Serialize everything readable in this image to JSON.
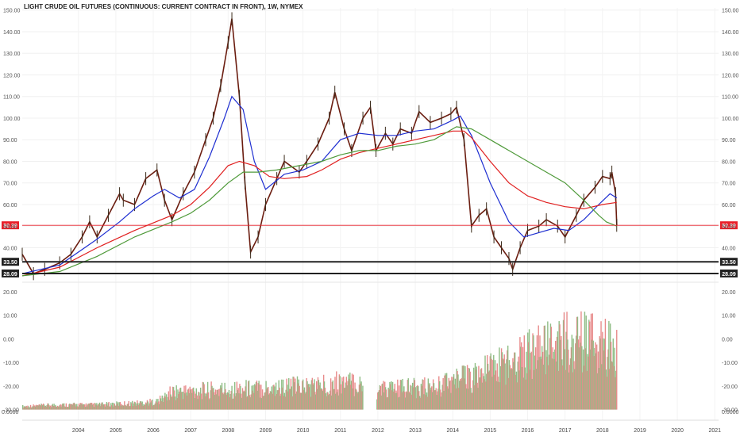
{
  "chart_data": {
    "type": "candlestick",
    "title": "LIGHT CRUDE OIL FUTURES (CONTINUOUS: CURRENT CONTRACT IN FRONT), 1W, NYMEX",
    "price_axis": {
      "ticks": [
        40,
        50,
        60,
        70,
        80,
        90,
        100,
        110,
        120,
        130,
        140,
        150
      ],
      "tick_labels": [
        "40.00",
        "50.00",
        "60.00",
        "70.00",
        "80.00",
        "90.00",
        "100.00",
        "110.00",
        "120.00",
        "130.00",
        "140.00",
        "150.00"
      ],
      "range": [
        25.5,
        151
      ]
    },
    "x_axis": {
      "tick_labels": [
        "2004",
        "2005",
        "2006",
        "2007",
        "2008",
        "2009",
        "2010",
        "2011",
        "2012",
        "2013",
        "2014",
        "2015",
        "2016",
        "2017",
        "2018",
        "2019",
        "2020",
        "2021"
      ],
      "range": [
        2003.0,
        2021.6
      ]
    },
    "price_series": {
      "name": "price",
      "x": [
        2003.0,
        2003.3,
        2003.6,
        2004.0,
        2004.3,
        2004.6,
        2004.8,
        2005.0,
        2005.3,
        2005.6,
        2005.7,
        2006.0,
        2006.3,
        2006.6,
        2006.8,
        2007.0,
        2007.3,
        2007.6,
        2007.9,
        2008.1,
        2008.3,
        2008.5,
        2008.6,
        2008.8,
        2008.95,
        2009.1,
        2009.3,
        2009.5,
        2009.8,
        2010.0,
        2010.4,
        2010.6,
        2010.9,
        2011.2,
        2011.35,
        2011.6,
        2011.8,
        2012.1,
        2012.3,
        2012.45,
        2012.7,
        2012.9,
        2013.1,
        2013.4,
        2013.6,
        2013.9,
        2014.2,
        2014.45,
        2014.6,
        2014.8,
        2015.0,
        2015.2,
        2015.4,
        2015.6,
        2015.8,
        2016.0,
        2016.1,
        2016.3,
        2016.5,
        2016.8,
        2017.0,
        2017.3,
        2017.5,
        2017.8,
        2018.0,
        2018.3,
        2018.5,
        2018.7,
        2018.75,
        2018.85,
        2018.88
      ],
      "y": [
        37,
        28,
        30,
        33,
        37,
        45,
        52,
        45,
        55,
        65,
        62,
        60,
        72,
        76,
        62,
        53,
        65,
        75,
        90,
        100,
        115,
        135,
        146,
        110,
        70,
        38,
        45,
        60,
        72,
        80,
        75,
        80,
        88,
        100,
        112,
        95,
        85,
        100,
        105,
        85,
        93,
        88,
        95,
        93,
        103,
        98,
        100,
        102,
        105,
        90,
        50,
        55,
        58,
        45,
        40,
        35,
        30,
        40,
        48,
        50,
        53,
        50,
        45,
        55,
        62,
        68,
        73,
        72,
        75,
        65,
        50.39
      ],
      "last": 50.39,
      "last_label": "50.39"
    },
    "moving_averages": [
      {
        "color": "#1f2fd1",
        "x": [
          2003.0,
          2004.0,
          2005.0,
          2005.6,
          2006.0,
          2006.5,
          2006.8,
          2007.2,
          2007.6,
          2008.0,
          2008.4,
          2008.6,
          2008.9,
          2009.2,
          2009.5,
          2010.0,
          2010.5,
          2011.0,
          2011.5,
          2012.0,
          2012.5,
          2013.0,
          2013.5,
          2014.0,
          2014.5,
          2014.7,
          2015.0,
          2015.5,
          2016.0,
          2016.4,
          2016.8,
          2017.2,
          2017.6,
          2018.0,
          2018.4,
          2018.7,
          2018.88
        ],
        "y": [
          28,
          32,
          44,
          52,
          58,
          64,
          67,
          63,
          67,
          82,
          100,
          110,
          104,
          80,
          67,
          74,
          76,
          80,
          90,
          93,
          92,
          92,
          94,
          95,
          99,
          101,
          92,
          70,
          52,
          45,
          47,
          49,
          48,
          53,
          60,
          65,
          63
        ]
      },
      {
        "color": "#e02020",
        "x": [
          2003.0,
          2004.0,
          2005.0,
          2006.0,
          2007.0,
          2007.5,
          2008.0,
          2008.5,
          2008.8,
          2009.2,
          2009.6,
          2010.0,
          2010.6,
          2011.0,
          2011.5,
          2012.0,
          2012.5,
          2013.0,
          2013.5,
          2014.0,
          2014.5,
          2014.8,
          2015.0,
          2015.5,
          2016.0,
          2016.5,
          2017.0,
          2017.5,
          2018.0,
          2018.5,
          2018.88
        ],
        "y": [
          27,
          31,
          40,
          48,
          55,
          60,
          68,
          78,
          80,
          78,
          73,
          72,
          73,
          76,
          81,
          84,
          86,
          88,
          90,
          92,
          94,
          94,
          91,
          80,
          70,
          64,
          61,
          59,
          58,
          60,
          61
        ]
      },
      {
        "color": "#4f9a3a",
        "x": [
          2003.0,
          2004.0,
          2005.0,
          2006.0,
          2007.0,
          2007.5,
          2008.0,
          2008.5,
          2008.9,
          2009.3,
          2009.8,
          2010.4,
          2011.0,
          2011.5,
          2012.0,
          2012.5,
          2013.0,
          2013.5,
          2014.0,
          2014.6,
          2015.0,
          2015.5,
          2016.0,
          2016.5,
          2017.0,
          2017.5,
          2018.0,
          2018.4,
          2018.6,
          2018.88
        ],
        "y": [
          27,
          29,
          36,
          45,
          52,
          56,
          62,
          70,
          75,
          75,
          76,
          78,
          80,
          83,
          85,
          85,
          87,
          88,
          90,
          96,
          95,
          90,
          85,
          80,
          75,
          70,
          62,
          55,
          52,
          50
        ]
      }
    ],
    "horizontal_lines": [
      {
        "value": 50.39,
        "label": "50.39",
        "color": "#e8202a",
        "style": "thin"
      },
      {
        "value": 33.5,
        "label": "33.50",
        "color": "#222222",
        "style": "thick"
      },
      {
        "value": 28.09,
        "label": "28.09",
        "color": "#222222",
        "style": "thick"
      }
    ],
    "oscillator_axis": {
      "ticks": [
        20,
        10,
        0,
        -10,
        -20,
        -30
      ],
      "tick_labels": [
        "20.00",
        "10.00",
        "0.00",
        "-10.00",
        "-20.00",
        "-30.00"
      ],
      "extra_label": "0.0000",
      "range": [
        -34.5,
        22
      ]
    },
    "oscillator": {
      "base": -30,
      "gaps": [
        [
          2012.1,
          2012.45
        ]
      ],
      "envelope_x": [
        2003.0,
        2004.0,
        2005.0,
        2006.0,
        2006.6,
        2007.0,
        2008.0,
        2009.0,
        2010.0,
        2011.0,
        2011.5,
        2012.1,
        2012.45,
        2013.0,
        2014.0,
        2014.5,
        2015.0,
        2015.5,
        2016.0,
        2016.5,
        2017.0,
        2017.5,
        2018.0,
        2018.5,
        2018.88
      ],
      "envelope_y": [
        -28,
        -27,
        -27,
        -26,
        -25,
        -19,
        -18,
        -17,
        -16,
        -15,
        -13,
        -15,
        -18,
        -17,
        -16,
        -12,
        -10,
        -5,
        0,
        5,
        8,
        12,
        12,
        10,
        7
      ],
      "colors": [
        "#e88b8b",
        "#8fbd85"
      ]
    }
  }
}
